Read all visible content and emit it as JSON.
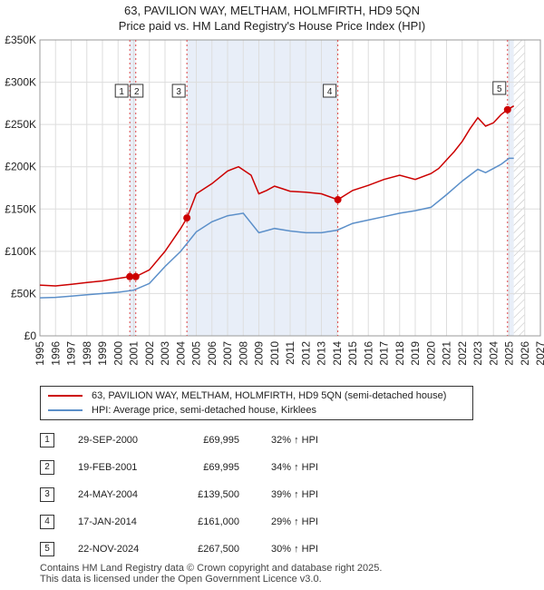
{
  "title_line1": "63, PAVILION WAY, MELTHAM, HOLMFIRTH, HD9 5QN",
  "title_line2": "Price paid vs. HM Land Registry's House Price Index (HPI)",
  "legend": {
    "property": "63, PAVILION WAY, MELTHAM, HOLMFIRTH, HD9 5QN (semi-detached house)",
    "hpi": "HPI: Average price, semi-detached house, Kirklees"
  },
  "sales": [
    {
      "num": "1",
      "date": "29-SEP-2000",
      "price": "£69,995",
      "hpi": "32% ↑ HPI"
    },
    {
      "num": "2",
      "date": "19-FEB-2001",
      "price": "£69,995",
      "hpi": "34% ↑ HPI"
    },
    {
      "num": "3",
      "date": "24-MAY-2004",
      "price": "£139,500",
      "hpi": "39% ↑ HPI"
    },
    {
      "num": "4",
      "date": "17-JAN-2014",
      "price": "£161,000",
      "hpi": "29% ↑ HPI"
    },
    {
      "num": "5",
      "date": "22-NOV-2024",
      "price": "£267,500",
      "hpi": "30% ↑ HPI"
    }
  ],
  "footer_line1": "Contains HM Land Registry data © Crown copyright and database right 2025.",
  "footer_line2": "This data is licensed under the Open Government Licence v3.0.",
  "colors": {
    "property": "#cc0000",
    "hpi": "#5b8fc9",
    "shade": "#e8eef8",
    "grid": "#dddddd"
  },
  "chart_data": {
    "type": "line",
    "title": "63, PAVILION WAY, MELTHAM, HOLMFIRTH, HD9 5QN — Price paid vs. HM Land Registry's House Price Index (HPI)",
    "xlim": [
      1995,
      2027
    ],
    "ylim": [
      0,
      350000
    ],
    "x_ticks": [
      1995,
      1996,
      1997,
      1998,
      1999,
      2000,
      2001,
      2002,
      2003,
      2004,
      2005,
      2006,
      2007,
      2008,
      2009,
      2010,
      2011,
      2012,
      2013,
      2014,
      2015,
      2016,
      2017,
      2018,
      2019,
      2020,
      2021,
      2022,
      2023,
      2024,
      2025,
      2026,
      2027
    ],
    "y_ticks": [
      0,
      50000,
      100000,
      150000,
      200000,
      250000,
      300000,
      350000
    ],
    "y_tick_labels": [
      "£0",
      "£50K",
      "£100K",
      "£150K",
      "£200K",
      "£250K",
      "£300K",
      "£350K"
    ],
    "forecast_start": 2025.3,
    "sale_markers": [
      {
        "label": "1",
        "x": 2000.75,
        "y": 69995
      },
      {
        "label": "2",
        "x": 2001.13,
        "y": 69995
      },
      {
        "label": "3",
        "x": 2004.4,
        "y": 139500
      },
      {
        "label": "4",
        "x": 2014.05,
        "y": 161000
      },
      {
        "label": "5",
        "x": 2024.9,
        "y": 267500
      }
    ],
    "series": [
      {
        "name": "63, PAVILION WAY, MELTHAM, HOLMFIRTH, HD9 5QN (semi-detached house)",
        "x": [
          1995,
          1996,
          1997,
          1998,
          1999,
          2000,
          2000.75,
          2001.13,
          2002,
          2003,
          2004,
          2004.4,
          2005,
          2006,
          2007,
          2007.7,
          2008.5,
          2009,
          2009.5,
          2010,
          2010.5,
          2011,
          2012,
          2013,
          2014.05,
          2015,
          2016,
          2017,
          2018,
          2019,
          2020,
          2020.5,
          2021,
          2021.5,
          2022,
          2022.5,
          2023,
          2023.5,
          2024,
          2024.5,
          2024.9,
          2025.3
        ],
        "values": [
          60000,
          59000,
          61000,
          63000,
          65000,
          68000,
          69995,
          69995,
          78000,
          100000,
          127000,
          139500,
          168000,
          180000,
          195000,
          200000,
          190000,
          168000,
          172000,
          177000,
          174000,
          171000,
          170000,
          168000,
          161000,
          172000,
          178000,
          185000,
          190000,
          185000,
          192000,
          198000,
          208000,
          218000,
          230000,
          245000,
          258000,
          248000,
          252000,
          262000,
          267500,
          272000
        ]
      },
      {
        "name": "HPI: Average price, semi-detached house, Kirklees",
        "x": [
          1995,
          1996,
          1997,
          1998,
          1999,
          2000,
          2001,
          2002,
          2003,
          2004,
          2005,
          2006,
          2007,
          2008,
          2009,
          2010,
          2011,
          2012,
          2013,
          2014,
          2015,
          2016,
          2017,
          2018,
          2019,
          2020,
          2021,
          2022,
          2023,
          2023.5,
          2024,
          2024.5,
          2025,
          2025.3
        ],
        "values": [
          45000,
          45500,
          47000,
          48500,
          50000,
          51500,
          54000,
          62000,
          82000,
          100000,
          123000,
          135000,
          142000,
          145000,
          122000,
          127000,
          124000,
          122000,
          122000,
          125000,
          133000,
          137000,
          141000,
          145000,
          148000,
          152000,
          167000,
          183000,
          197000,
          193000,
          198000,
          203000,
          210000,
          210000
        ]
      }
    ]
  }
}
